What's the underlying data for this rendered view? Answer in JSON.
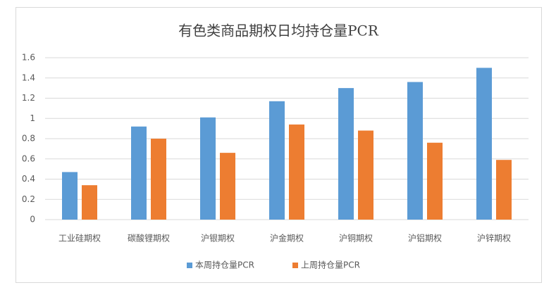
{
  "chart_data": {
    "type": "bar",
    "title": "有色类商品期权日均持仓量PCR",
    "categories": [
      "工业硅期权",
      "碳酸锂期权",
      "沪银期权",
      "沪金期权",
      "沪铜期权",
      "沪铝期权",
      "沪锌期权"
    ],
    "series": [
      {
        "name": "本周持仓量PCR",
        "color": "#5b9bd5",
        "values": [
          0.47,
          0.92,
          1.01,
          1.17,
          1.3,
          1.36,
          1.5
        ]
      },
      {
        "name": "上周持仓量PCR",
        "color": "#ed7d31",
        "values": [
          0.34,
          0.8,
          0.66,
          0.94,
          0.88,
          0.76,
          0.59
        ]
      }
    ],
    "ylim": [
      0,
      1.6
    ],
    "yticks": [
      0,
      0.2,
      0.4,
      0.6,
      0.8,
      1,
      1.2,
      1.4,
      1.6
    ],
    "grid": true,
    "legend": "bottom"
  }
}
